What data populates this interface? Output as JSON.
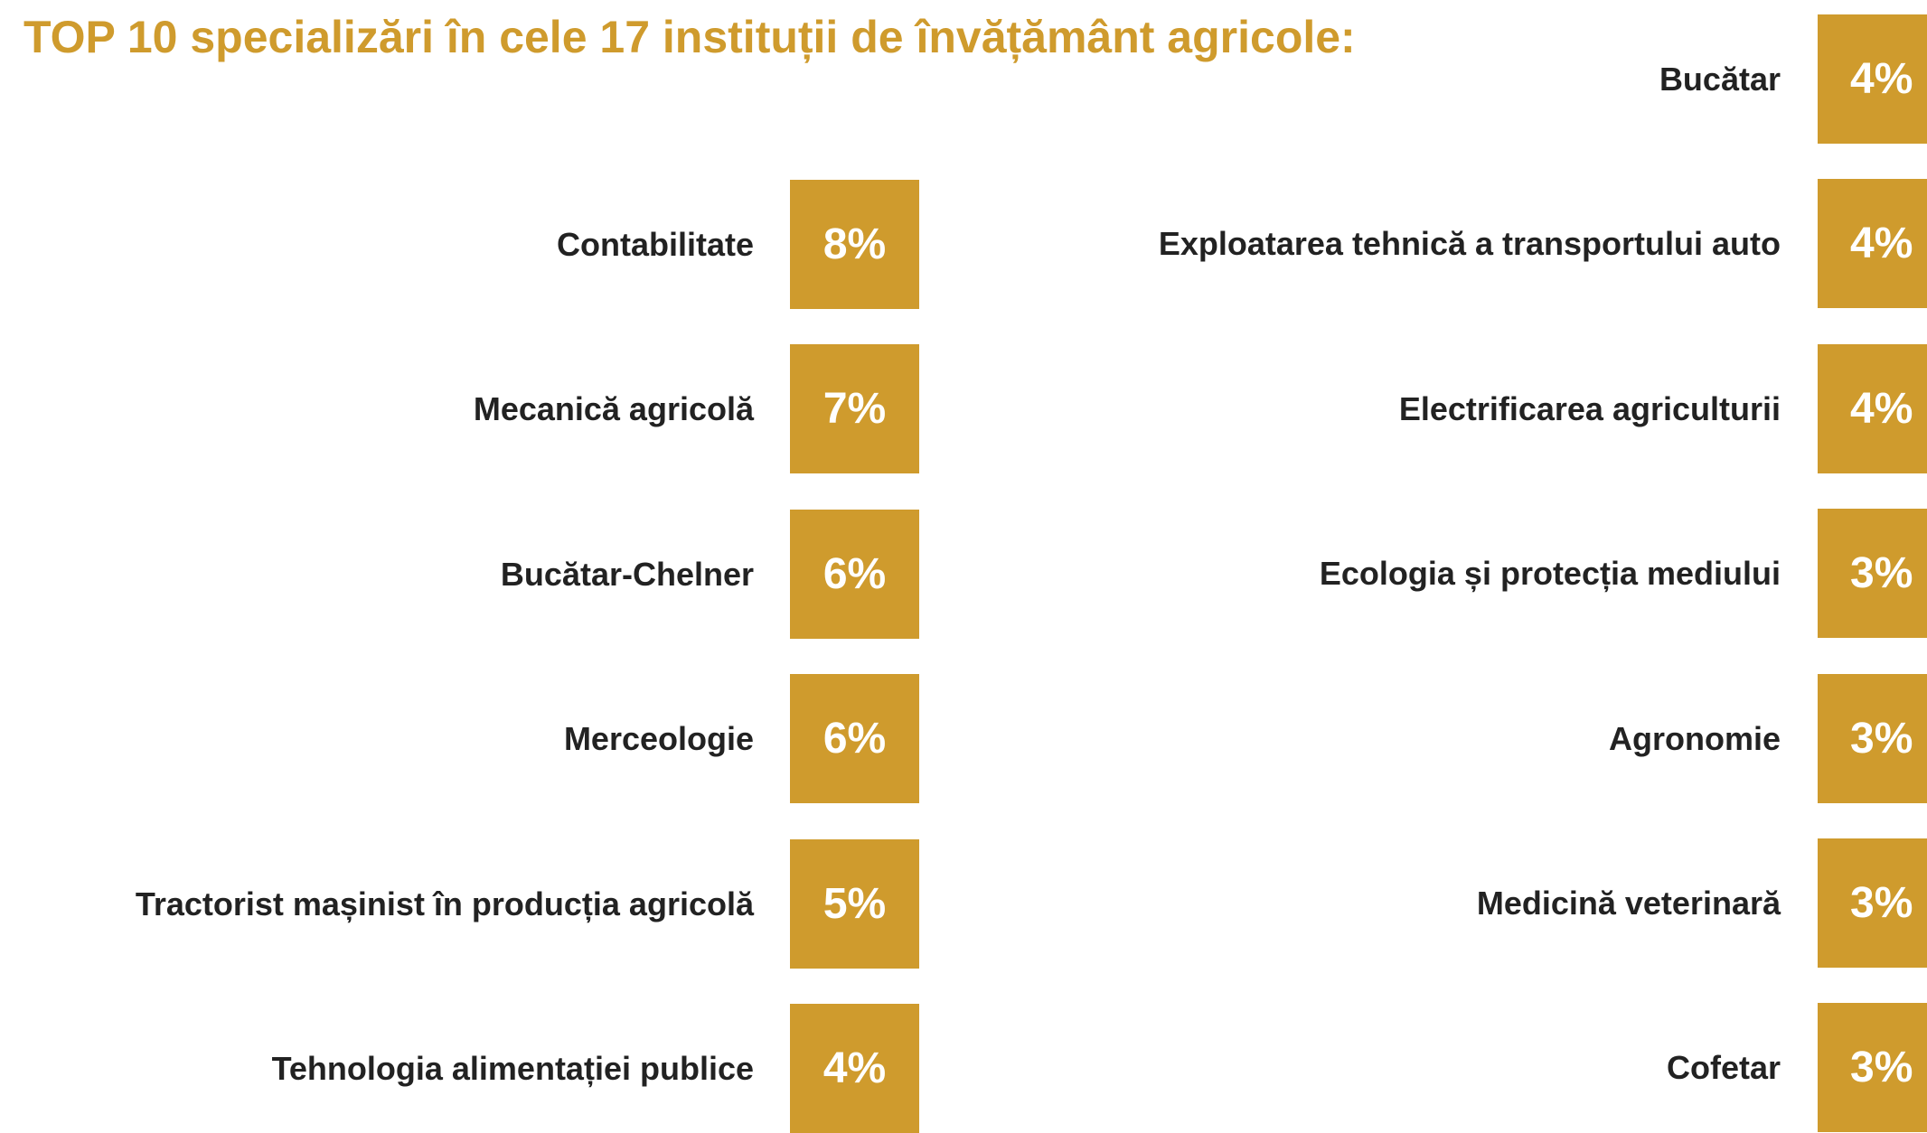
{
  "title": "TOP 10 specializări în cele 17 instituții de învățământ agricole:",
  "left": [
    {
      "label": "Contabilitate",
      "value": "8%"
    },
    {
      "label": "Mecanică agricolă",
      "value": "7%"
    },
    {
      "label": "Bucătar-Chelner",
      "value": "6%"
    },
    {
      "label": "Merceologie",
      "value": "6%"
    },
    {
      "label": "Tractorist mașinist în producția agricolă",
      "value": "5%"
    },
    {
      "label": "Tehnologia alimentației publice",
      "value": "4%"
    }
  ],
  "right": [
    {
      "label": "Bucătar",
      "value": "4%"
    },
    {
      "label": "Exploatarea tehnică a transportului auto",
      "value": "4%"
    },
    {
      "label": "Electrificarea agriculturii",
      "value": "4%"
    },
    {
      "label": "Ecologia și protecția mediului",
      "value": "3%"
    },
    {
      "label": "Agronomie",
      "value": "3%"
    },
    {
      "label": "Medicină veterinară",
      "value": "3%"
    },
    {
      "label": "Cofetar",
      "value": "3%"
    }
  ]
}
